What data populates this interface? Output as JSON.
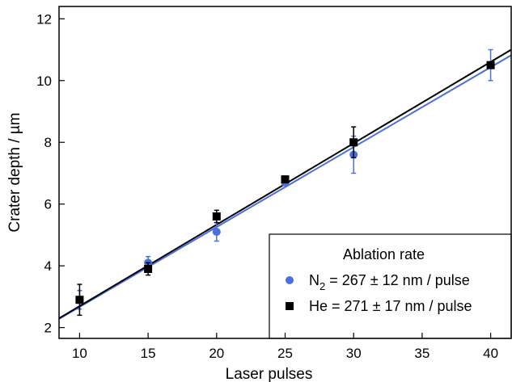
{
  "chart_data": {
    "type": "scatter",
    "xlabel": "Laser pulses",
    "ylabel": "Crater depth / µm",
    "xlim": [
      8.5,
      41.5
    ],
    "ylim": [
      1.65,
      12.4
    ],
    "xticks": [
      10,
      15,
      20,
      25,
      30,
      35,
      40
    ],
    "yticks": [
      2,
      4,
      6,
      8,
      10,
      12
    ],
    "grid": false,
    "legend": {
      "title": "Ablation rate",
      "placement": "bottom-right"
    },
    "series": [
      {
        "name_prefix": "N",
        "name_subscript": "2",
        "name_suffix": " = 267 ± 12 nm / pulse",
        "color": "#4a6fe0",
        "marker": "circle",
        "x": [
          10,
          15,
          20,
          25,
          30,
          40
        ],
        "y": [
          2.9,
          4.1,
          5.1,
          6.7,
          7.6,
          10.5
        ],
        "yerr": [
          0.3,
          0.2,
          0.3,
          0.1,
          0.6,
          0.5
        ],
        "fit": {
          "x": [
            8.5,
            41.5
          ],
          "y": [
            2.28,
            10.82
          ]
        }
      },
      {
        "name_prefix": "He",
        "name_subscript": "",
        "name_suffix": " = 271 ± 17 nm / pulse",
        "color": "#000000",
        "marker": "square",
        "x": [
          10,
          15,
          20,
          25,
          30,
          40
        ],
        "y": [
          2.9,
          3.9,
          5.6,
          6.8,
          8.0,
          10.5
        ],
        "yerr": [
          0.5,
          0.2,
          0.2,
          0.1,
          0.5,
          0.0
        ],
        "fit": {
          "x": [
            8.5,
            41.5
          ],
          "y": [
            2.3,
            11.0
          ]
        }
      }
    ]
  }
}
